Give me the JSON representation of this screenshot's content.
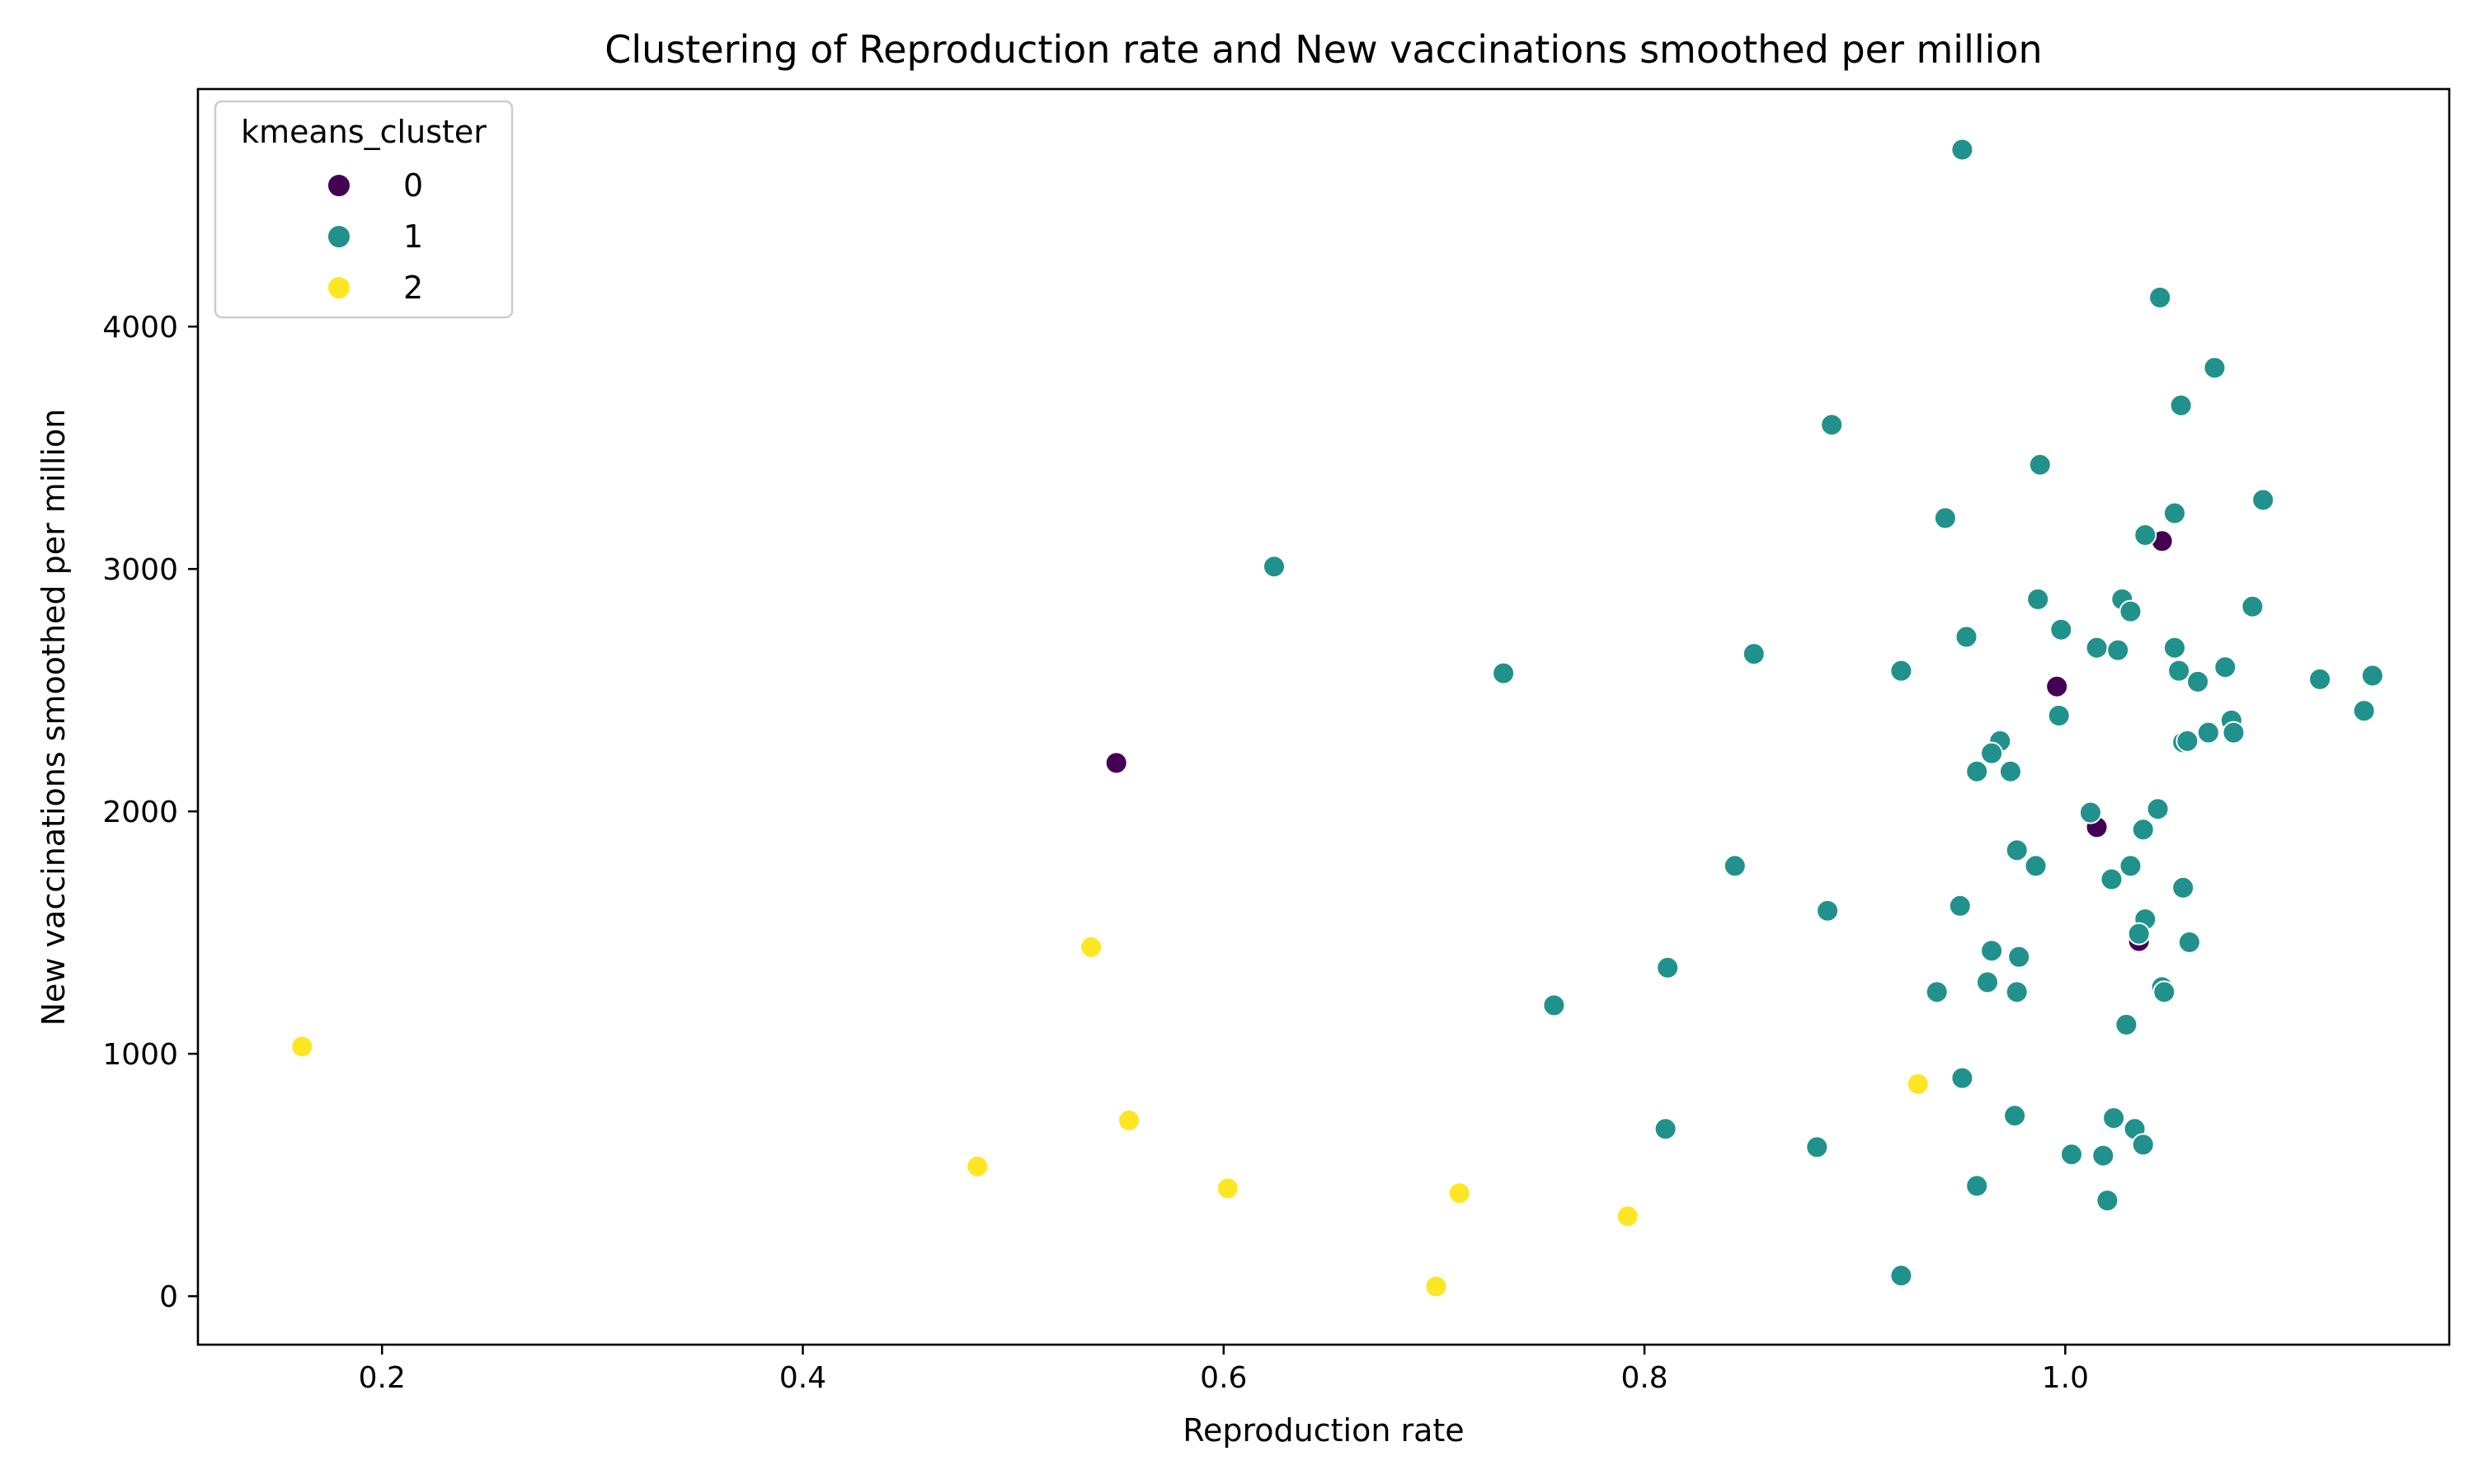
{
  "chart_data": {
    "type": "scatter",
    "title": "Clustering of Reproduction rate and New vaccinations smoothed per million",
    "xlabel": "Reproduction rate",
    "ylabel": "New vaccinations smoothed per million",
    "xlim": [
      0.1125,
      1.1825
    ],
    "ylim": [
      -200,
      4980
    ],
    "xticks": [
      0.2,
      0.4,
      0.6,
      0.8,
      1.0
    ],
    "xtick_labels": [
      "0.2",
      "0.4",
      "0.6",
      "0.8",
      "1.0"
    ],
    "yticks": [
      0,
      1000,
      2000,
      3000,
      4000
    ],
    "ytick_labels": [
      "0",
      "1000",
      "2000",
      "3000",
      "4000"
    ],
    "grid": false,
    "legend": {
      "title": "kmeans_cluster",
      "placement": "top-left",
      "entries": [
        {
          "label": "0",
          "color": "#440154"
        },
        {
          "label": "1",
          "color": "#21918c"
        },
        {
          "label": "2",
          "color": "#fde725"
        }
      ]
    },
    "series": [
      {
        "name": "0",
        "color": "#440154",
        "points": [
          [
            0.549,
            2200
          ],
          [
            0.996,
            2515
          ],
          [
            1.015,
            1935
          ],
          [
            1.046,
            3115
          ],
          [
            1.035,
            1465
          ]
        ]
      },
      {
        "name": "1",
        "color": "#21918c",
        "points": [
          [
            0.951,
            4730
          ],
          [
            1.045,
            4120
          ],
          [
            1.071,
            3830
          ],
          [
            0.889,
            3595
          ],
          [
            1.055,
            3675
          ],
          [
            0.988,
            3430
          ],
          [
            1.052,
            3230
          ],
          [
            0.943,
            3210
          ],
          [
            1.038,
            3140
          ],
          [
            1.094,
            3285
          ],
          [
            0.624,
            3010
          ],
          [
            0.987,
            2875
          ],
          [
            1.027,
            2875
          ],
          [
            1.031,
            2825
          ],
          [
            1.089,
            2845
          ],
          [
            0.998,
            2750
          ],
          [
            0.953,
            2720
          ],
          [
            1.015,
            2675
          ],
          [
            1.025,
            2665
          ],
          [
            1.052,
            2675
          ],
          [
            0.852,
            2650
          ],
          [
            0.733,
            2570
          ],
          [
            0.922,
            2580
          ],
          [
            1.054,
            2580
          ],
          [
            1.063,
            2535
          ],
          [
            1.076,
            2595
          ],
          [
            1.121,
            2545
          ],
          [
            1.146,
            2560
          ],
          [
            1.142,
            2415
          ],
          [
            0.997,
            2395
          ],
          [
            1.079,
            2375
          ],
          [
            1.068,
            2325
          ],
          [
            1.08,
            2325
          ],
          [
            1.056,
            2285
          ],
          [
            1.058,
            2290
          ],
          [
            0.969,
            2290
          ],
          [
            0.965,
            2240
          ],
          [
            0.958,
            2165
          ],
          [
            0.974,
            2165
          ],
          [
            1.012,
            1995
          ],
          [
            1.044,
            2010
          ],
          [
            1.037,
            1925
          ],
          [
            0.977,
            1840
          ],
          [
            0.986,
            1775
          ],
          [
            1.031,
            1775
          ],
          [
            0.843,
            1775
          ],
          [
            1.022,
            1720
          ],
          [
            1.056,
            1685
          ],
          [
            0.95,
            1610
          ],
          [
            0.887,
            1590
          ],
          [
            1.038,
            1555
          ],
          [
            1.035,
            1495
          ],
          [
            1.059,
            1460
          ],
          [
            0.965,
            1425
          ],
          [
            0.978,
            1400
          ],
          [
            0.811,
            1355
          ],
          [
            0.963,
            1295
          ],
          [
            1.046,
            1275
          ],
          [
            0.939,
            1255
          ],
          [
            0.977,
            1255
          ],
          [
            1.047,
            1255
          ],
          [
            0.757,
            1200
          ],
          [
            1.029,
            1120
          ],
          [
            0.951,
            900
          ],
          [
            0.976,
            745
          ],
          [
            1.023,
            735
          ],
          [
            0.81,
            690
          ],
          [
            1.033,
            690
          ],
          [
            0.882,
            615
          ],
          [
            1.037,
            625
          ],
          [
            1.003,
            585
          ],
          [
            1.018,
            580
          ],
          [
            0.958,
            455
          ],
          [
            1.02,
            395
          ],
          [
            0.922,
            85
          ]
        ]
      },
      {
        "name": "2",
        "color": "#fde725",
        "points": [
          [
            0.162,
            1030
          ],
          [
            0.537,
            1440
          ],
          [
            0.555,
            725
          ],
          [
            0.93,
            875
          ],
          [
            0.483,
            535
          ],
          [
            0.602,
            445
          ],
          [
            0.712,
            425
          ],
          [
            0.792,
            330
          ],
          [
            0.701,
            40
          ]
        ]
      }
    ]
  }
}
